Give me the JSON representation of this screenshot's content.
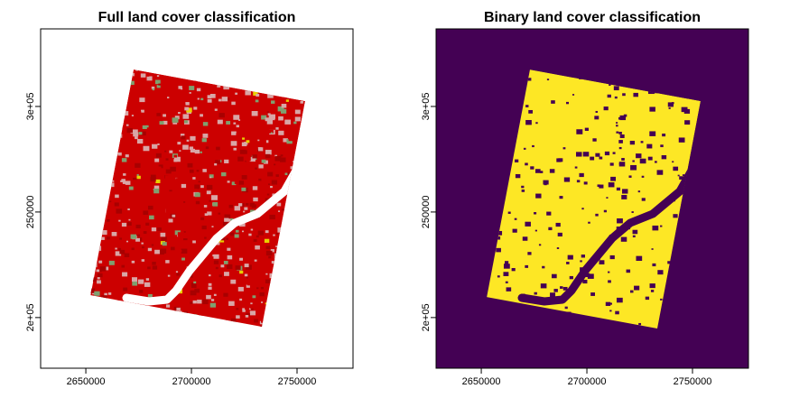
{
  "chart_data": [
    {
      "type": "raster",
      "title": "Full land cover classification",
      "xlim": [
        2628600,
        2776500
      ],
      "ylim": [
        176000,
        336750
      ],
      "xticks": [
        2650000,
        2700000,
        2750000
      ],
      "yticks": [
        {
          "value": 200000,
          "label": "2e+05"
        },
        250000,
        {
          "value": 300000,
          "label": "3e+05"
        }
      ],
      "palette": [
        "#cc0000",
        "#d9a6a6",
        "#7fa06f",
        "#a80000",
        "#e8d000"
      ]
    },
    {
      "type": "raster",
      "title": "Binary land cover classification",
      "xlim": [
        2628600,
        2776500
      ],
      "ylim": [
        176000,
        336750
      ],
      "xticks": [
        2650000,
        2700000,
        2750000
      ],
      "yticks": [
        {
          "value": 200000,
          "label": "2e+05"
        },
        250000,
        {
          "value": 300000,
          "label": "3e+05"
        }
      ],
      "palette": [
        "#440154",
        "#fde725"
      ]
    }
  ]
}
